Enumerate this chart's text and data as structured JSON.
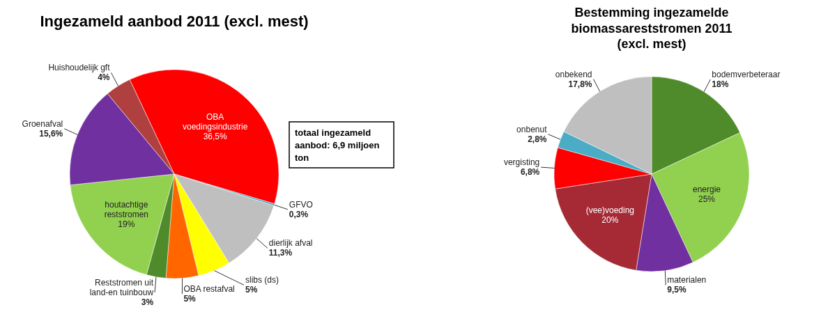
{
  "chart_data": [
    {
      "type": "pie",
      "title": "Ingezameld aanbod 2011 (excl. mest)",
      "categories": [
        "OBA voedingsindustrie",
        "GFVO",
        "dierlijk afval",
        "slibs (ds)",
        "OBA restafval",
        "Reststromen uit land-en tuinbouw",
        "houtachtige reststromen",
        "Groenafval",
        "Huishoudelijk gft"
      ],
      "values": [
        36.5,
        0.3,
        11.3,
        5,
        5,
        3,
        19,
        15.6,
        4
      ],
      "value_labels": [
        "36,5%",
        "0,3%",
        "11,3%",
        "5%",
        "5%",
        "3%",
        "19%",
        "15,6%",
        "4%"
      ],
      "colors": [
        "#ff0000",
        "#4bacc6",
        "#bfbfbf",
        "#ffff00",
        "#ff6600",
        "#4f8a2b",
        "#92d050",
        "#7030a0",
        "#b04040"
      ],
      "annotations": [
        "totaal ingezameld aanbod: 6,9 miljoen ton"
      ],
      "legend": false
    },
    {
      "type": "pie",
      "title": "Bestemming ingezamelde biomassareststromen 2011 (excl. mest)",
      "categories": [
        "bodemverbeteraar",
        "energie",
        "materialen",
        "(vee)voeding",
        "vergisting",
        "onbenut",
        "onbekend"
      ],
      "values": [
        18,
        25,
        9.5,
        20,
        6.8,
        2.8,
        17.8
      ],
      "value_labels": [
        "18%",
        "25%",
        "9,5%",
        "20%",
        "6,8%",
        "2,8%",
        "17,8%"
      ],
      "colors": [
        "#4f8a2b",
        "#92d050",
        "#7030a0",
        "#a52a35",
        "#ff0000",
        "#4bacc6",
        "#bfbfbf"
      ],
      "legend": false
    }
  ]
}
